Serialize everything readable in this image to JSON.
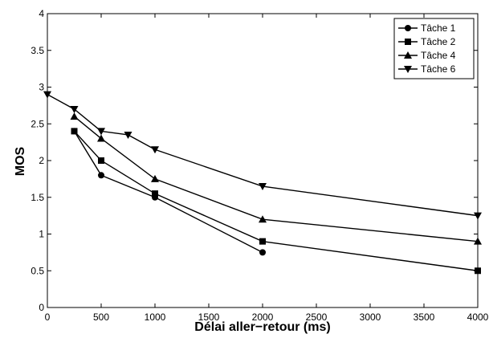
{
  "chart_data": {
    "type": "line",
    "title": "",
    "xlabel": "Délai aller−retour (ms)",
    "ylabel": "MOS",
    "xlim": [
      0,
      4000
    ],
    "ylim": [
      0,
      4
    ],
    "xticks": [
      0,
      500,
      1000,
      1500,
      2000,
      2500,
      3000,
      3500,
      4000
    ],
    "yticks": [
      0,
      0.5,
      1,
      1.5,
      2,
      2.5,
      3,
      3.5,
      4
    ],
    "xtick_labels": [
      "0",
      "500",
      "1000",
      "1500",
      "2000",
      "2500",
      "3000",
      "3500",
      "4000"
    ],
    "ytick_labels": [
      "0",
      "0.5",
      "1",
      "1.5",
      "2",
      "2.5",
      "3",
      "3.5",
      "4"
    ],
    "grid": false,
    "legend_position": "top-right",
    "series": [
      {
        "name": "Tâche 1",
        "marker": "circle",
        "points": [
          [
            250,
            2.4
          ],
          [
            500,
            1.8
          ],
          [
            1000,
            1.5
          ],
          [
            2000,
            0.75
          ]
        ]
      },
      {
        "name": "Tâche 2",
        "marker": "square",
        "points": [
          [
            250,
            2.4
          ],
          [
            500,
            2.0
          ],
          [
            1000,
            1.55
          ],
          [
            2000,
            0.9
          ],
          [
            4000,
            0.5
          ]
        ]
      },
      {
        "name": "Tâche 4",
        "marker": "triangle-up",
        "points": [
          [
            250,
            2.6
          ],
          [
            500,
            2.3
          ],
          [
            1000,
            1.75
          ],
          [
            2000,
            1.2
          ],
          [
            4000,
            0.9
          ]
        ]
      },
      {
        "name": "Tâche 6",
        "marker": "triangle-down",
        "points": [
          [
            0,
            2.9
          ],
          [
            250,
            2.7
          ],
          [
            500,
            2.4
          ],
          [
            750,
            2.35
          ],
          [
            1000,
            2.15
          ],
          [
            2000,
            1.65
          ],
          [
            4000,
            1.25
          ]
        ]
      }
    ]
  }
}
